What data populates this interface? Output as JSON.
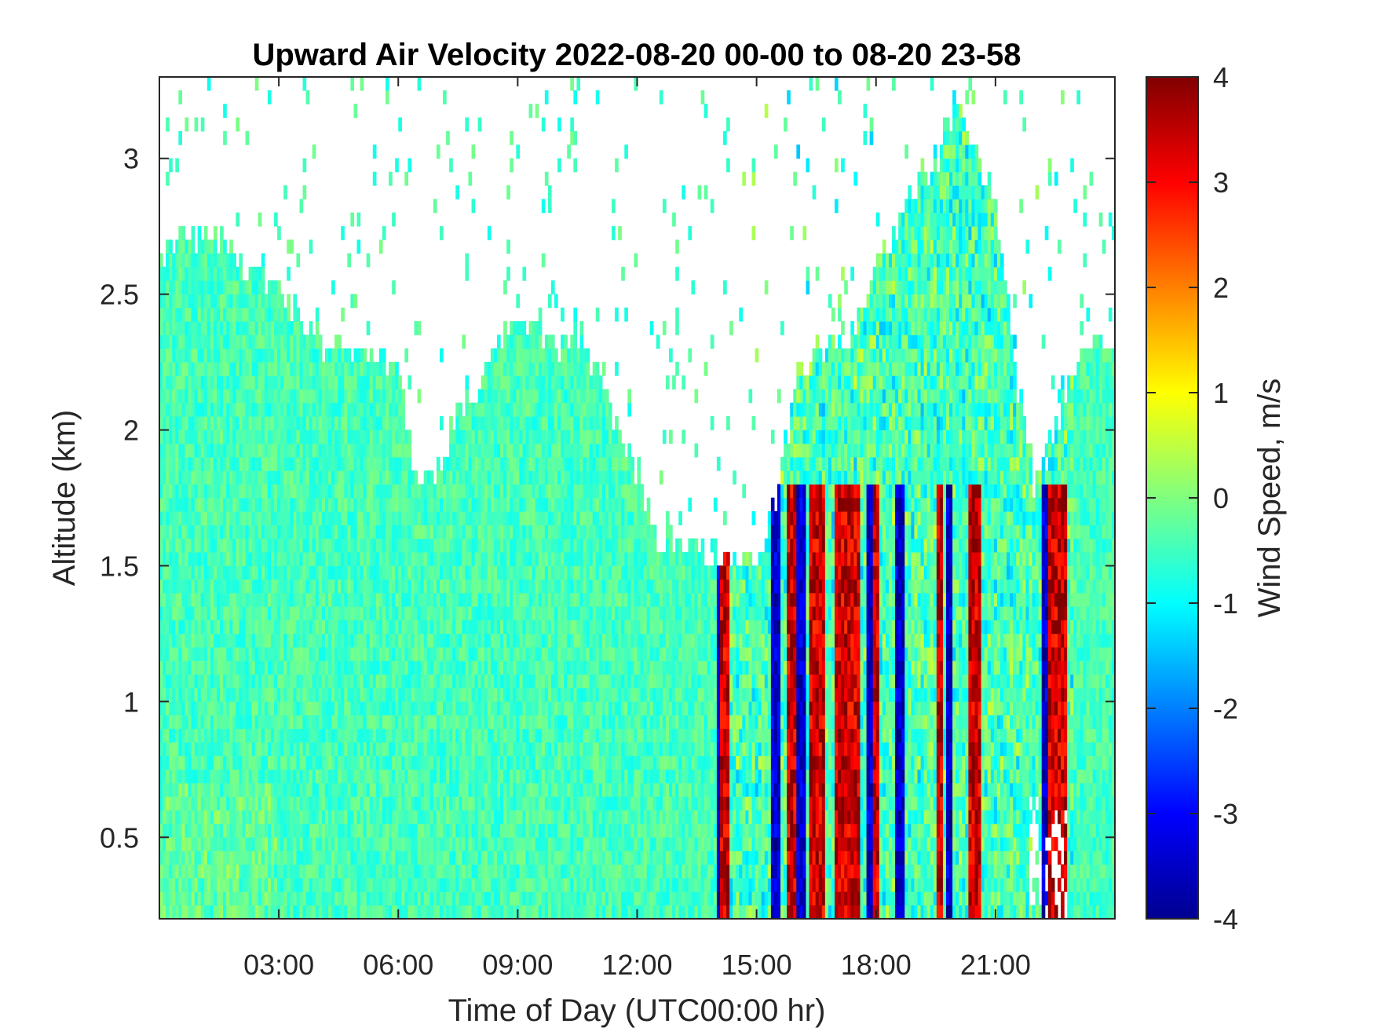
{
  "chart_data": {
    "type": "heatmap",
    "title": "Upward Air Velocity 2022-08-20 00-00 to 08-20 23-58",
    "xlabel": "Time of Day (UTC00:00 hr)",
    "ylabel": "Altitude (km)",
    "colorbar_label": "Wind Speed, m/s",
    "colormap": "jet",
    "x_unit": "hours UTC",
    "xlim": [
      0,
      24
    ],
    "ylim": [
      0.2,
      3.3
    ],
    "clim": [
      -4,
      4
    ],
    "x_ticks": [
      {
        "value": 3,
        "label": "03:00"
      },
      {
        "value": 6,
        "label": "06:00"
      },
      {
        "value": 9,
        "label": "09:00"
      },
      {
        "value": 12,
        "label": "12:00"
      },
      {
        "value": 15,
        "label": "15:00"
      },
      {
        "value": 18,
        "label": "18:00"
      },
      {
        "value": 21,
        "label": "21:00"
      }
    ],
    "y_ticks": [
      {
        "value": 0.5,
        "label": "0.5"
      },
      {
        "value": 1,
        "label": "1"
      },
      {
        "value": 1.5,
        "label": "1.5"
      },
      {
        "value": 2,
        "label": "2"
      },
      {
        "value": 2.5,
        "label": "2.5"
      },
      {
        "value": 3,
        "label": "3"
      }
    ],
    "colorbar_ticks": [
      {
        "value": 4,
        "label": "4"
      },
      {
        "value": 3,
        "label": "3"
      },
      {
        "value": 2,
        "label": "2"
      },
      {
        "value": 1,
        "label": "1"
      },
      {
        "value": 0,
        "label": "0"
      },
      {
        "value": -1,
        "label": "-1"
      },
      {
        "value": -2,
        "label": "-2"
      },
      {
        "value": -3,
        "label": "-3"
      },
      {
        "value": -4,
        "label": "-4"
      }
    ],
    "grid": false,
    "data_top_altitude_km": [
      [
        0.0,
        2.6
      ],
      [
        0.5,
        2.75
      ],
      [
        1.0,
        2.7
      ],
      [
        1.5,
        2.7
      ],
      [
        2.0,
        2.6
      ],
      [
        2.5,
        2.6
      ],
      [
        3.0,
        2.5
      ],
      [
        3.5,
        2.45
      ],
      [
        4.0,
        2.3
      ],
      [
        4.5,
        2.35
      ],
      [
        5.0,
        2.3
      ],
      [
        5.5,
        2.3
      ],
      [
        6.0,
        2.2
      ],
      [
        6.5,
        1.75
      ],
      [
        7.0,
        1.85
      ],
      [
        7.5,
        2.1
      ],
      [
        8.0,
        2.15
      ],
      [
        8.5,
        2.3
      ],
      [
        9.0,
        2.4
      ],
      [
        9.5,
        2.35
      ],
      [
        10.0,
        2.3
      ],
      [
        10.5,
        2.35
      ],
      [
        11.0,
        2.2
      ],
      [
        11.5,
        2.0
      ],
      [
        12.0,
        1.85
      ],
      [
        12.5,
        1.6
      ],
      [
        13.0,
        1.6
      ],
      [
        13.5,
        1.55
      ],
      [
        14.0,
        1.55
      ],
      [
        14.5,
        1.5
      ],
      [
        15.0,
        1.5
      ],
      [
        15.5,
        1.75
      ],
      [
        16.0,
        2.2
      ],
      [
        16.5,
        2.3
      ],
      [
        17.0,
        2.3
      ],
      [
        17.5,
        2.4
      ],
      [
        18.0,
        2.6
      ],
      [
        18.5,
        2.75
      ],
      [
        19.0,
        2.9
      ],
      [
        19.5,
        3.0
      ],
      [
        20.0,
        3.2
      ],
      [
        20.5,
        3.0
      ],
      [
        21.0,
        2.8
      ],
      [
        21.5,
        2.2
      ],
      [
        22.0,
        1.8
      ],
      [
        22.5,
        2.0
      ],
      [
        23.0,
        2.25
      ],
      [
        23.5,
        2.3
      ],
      [
        24.0,
        2.3
      ]
    ],
    "strong_updraft_bands_hours": [
      [
        14.1,
        14.3
      ],
      [
        15.8,
        16.0
      ],
      [
        16.3,
        16.7
      ],
      [
        17.0,
        17.6
      ],
      [
        17.9,
        18.1
      ],
      [
        19.5,
        19.7
      ],
      [
        20.3,
        20.6
      ],
      [
        22.3,
        22.8
      ]
    ],
    "strong_downdraft_bands_hours": [
      [
        14.0,
        14.1
      ],
      [
        15.4,
        15.6
      ],
      [
        16.0,
        16.2
      ],
      [
        17.8,
        17.9
      ],
      [
        18.5,
        18.7
      ],
      [
        19.8,
        19.9
      ],
      [
        22.2,
        22.3
      ]
    ]
  }
}
